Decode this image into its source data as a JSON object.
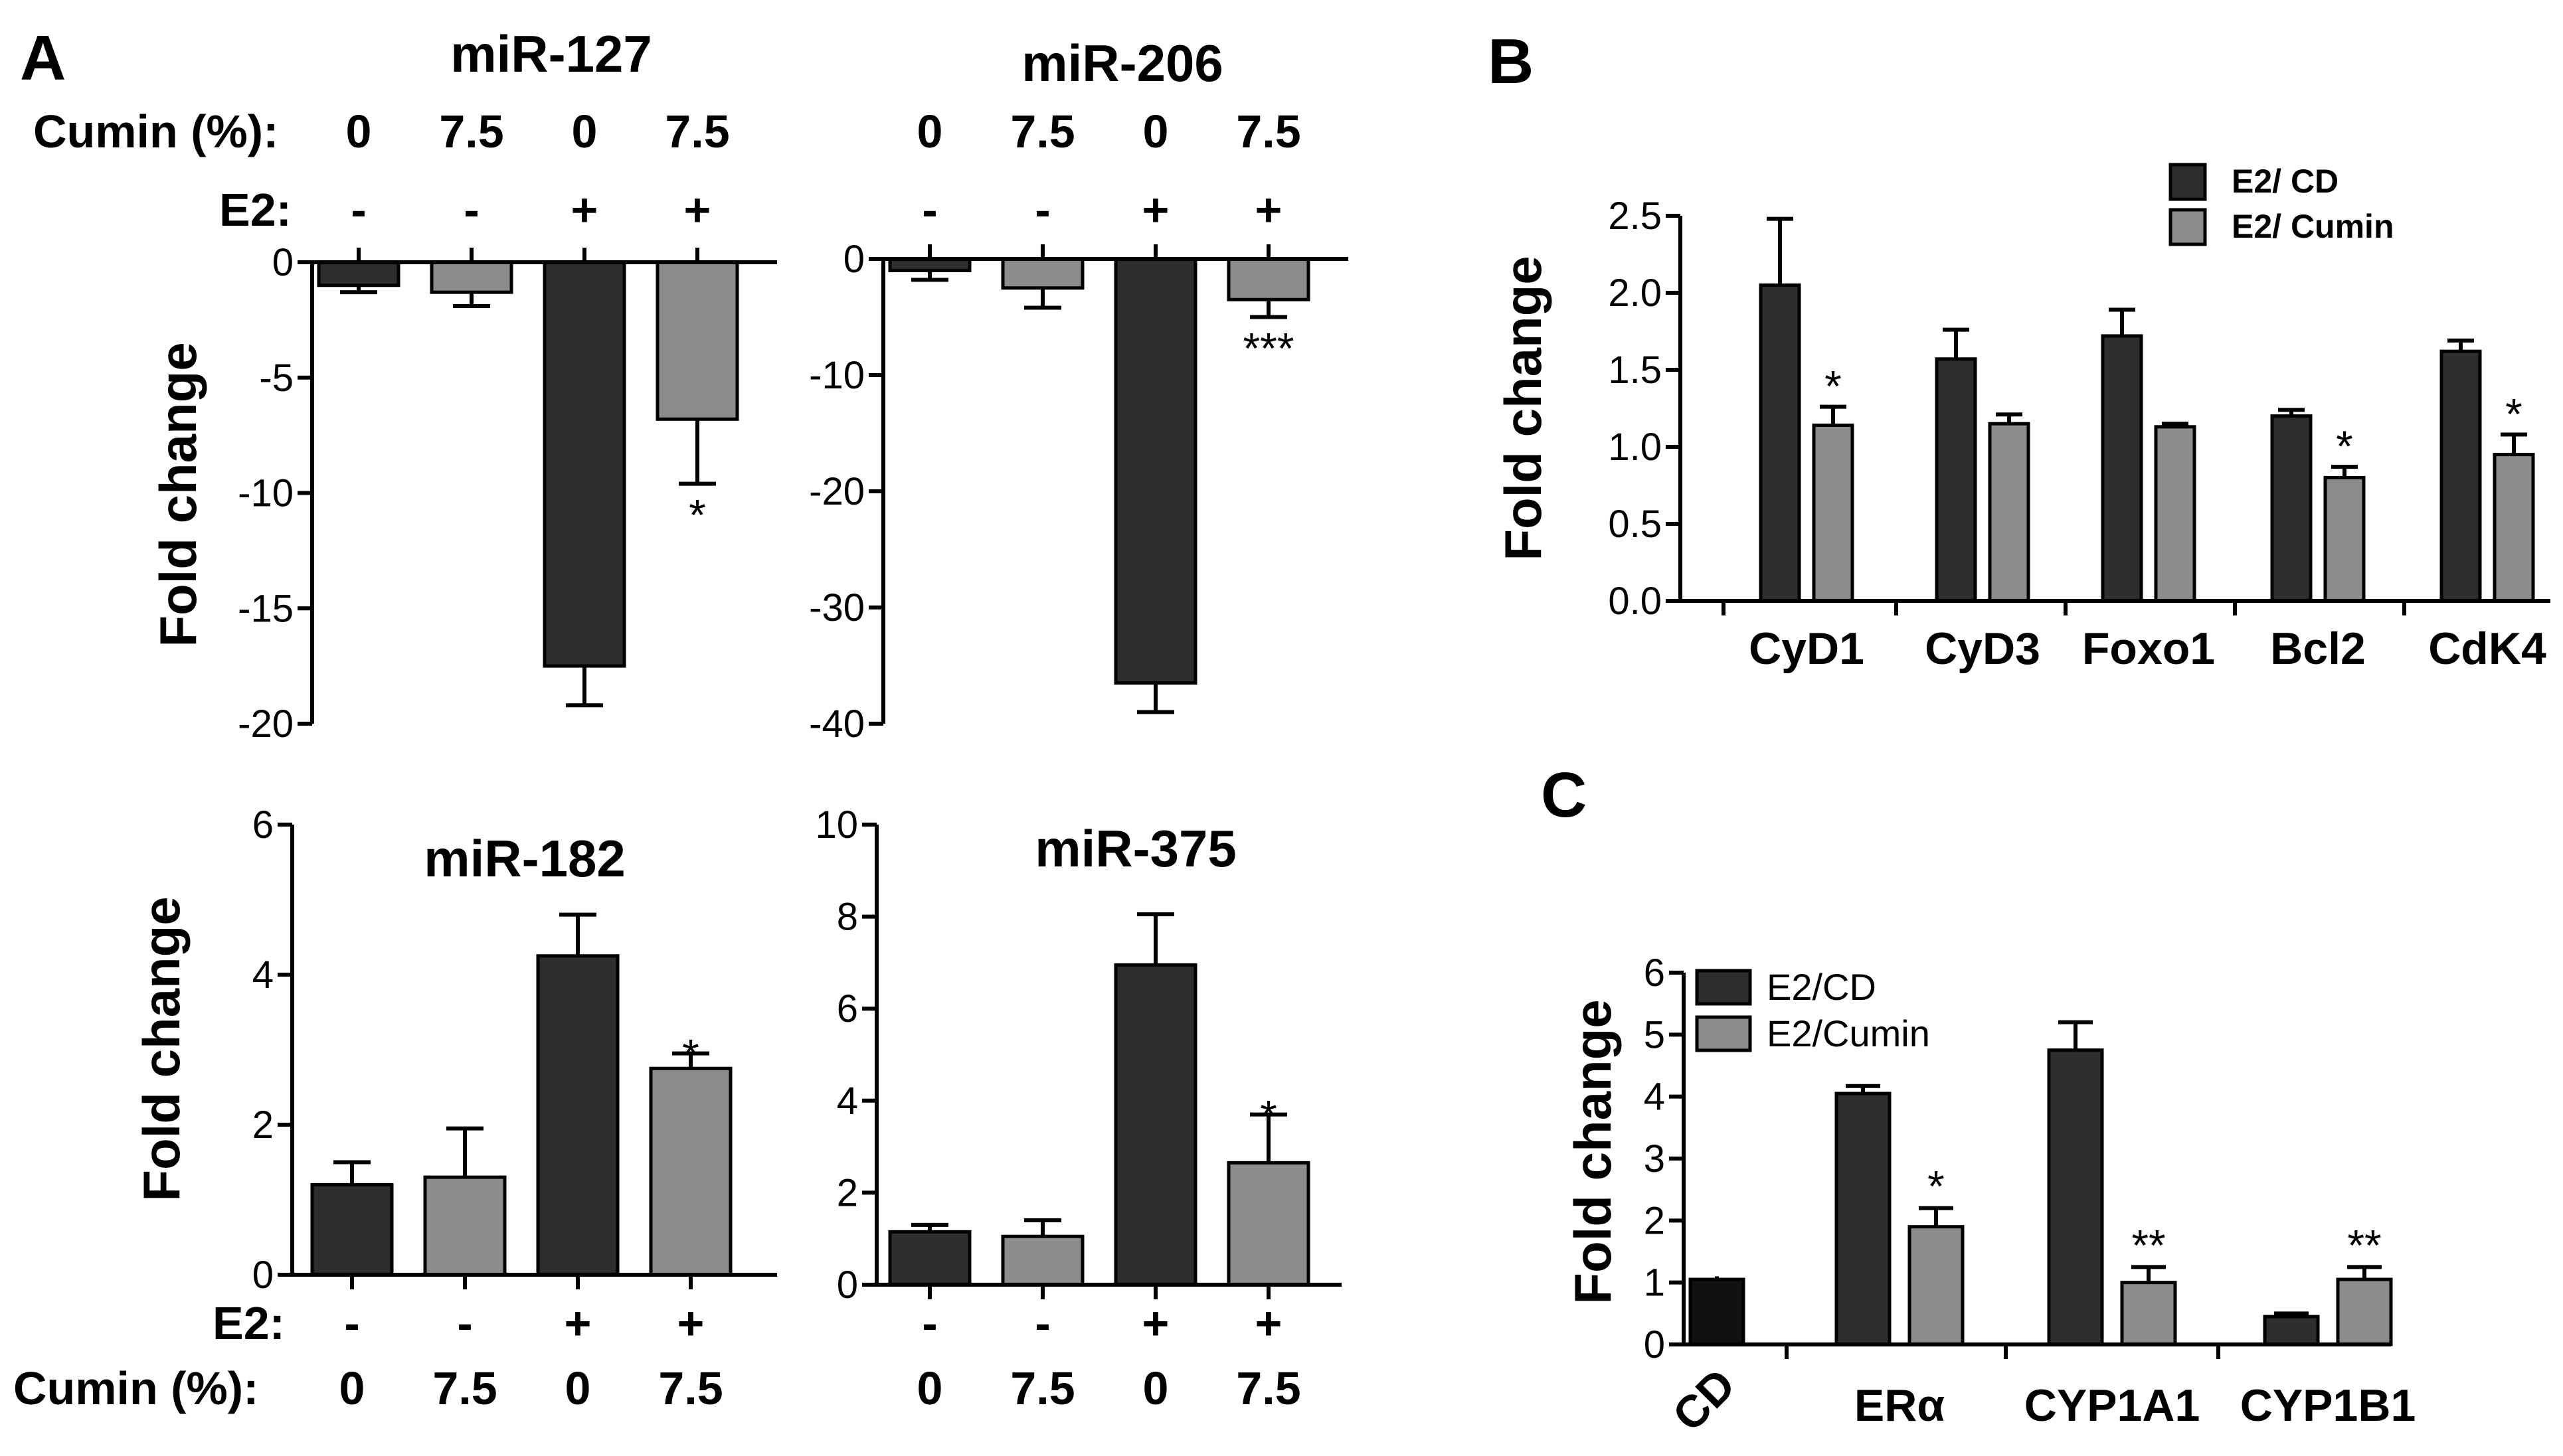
{
  "colors": {
    "dark": "#2e2e2e",
    "light": "#8c8c8c",
    "black": "#111111"
  },
  "panel_labels": {
    "a": "A",
    "b": "B",
    "c": "C"
  },
  "treatment": {
    "cumin_label": "Cumin (%):",
    "e2_label": "E2:",
    "cumin_values": [
      "0",
      "7.5",
      "0",
      "7.5"
    ],
    "e2_values": [
      "-",
      "-",
      "+",
      "+"
    ]
  },
  "chart_data": [
    {
      "id": "miR127",
      "type": "bar",
      "title": "miR-127",
      "ylabel": "Fold change",
      "categories": [
        "Cumin 0 / E2 -",
        "Cumin 7.5 / E2 -",
        "Cumin 0 / E2 +",
        "Cumin 7.5 / E2 +"
      ],
      "values": [
        -1.0,
        -1.3,
        -17.5,
        -6.8
      ],
      "errors": [
        0.3,
        0.6,
        1.7,
        2.8
      ],
      "colors": [
        "dark",
        "light",
        "dark",
        "light"
      ],
      "significance": [
        "",
        "",
        "",
        "*"
      ],
      "ylim": [
        -20,
        0
      ],
      "yticks": [
        0,
        -5,
        -10,
        -15,
        -20
      ],
      "ytick_labels": [
        "0",
        "-5",
        "-10",
        "-15",
        "-20"
      ]
    },
    {
      "id": "miR206",
      "type": "bar",
      "title": "miR-206",
      "ylabel": "",
      "categories": [
        "Cumin 0 / E2 -",
        "Cumin 7.5 / E2 -",
        "Cumin 0 / E2 +",
        "Cumin 7.5 / E2 +"
      ],
      "values": [
        -1.0,
        -2.5,
        -36.5,
        -3.5
      ],
      "errors": [
        0.8,
        1.7,
        2.5,
        1.5
      ],
      "colors": [
        "dark",
        "light",
        "dark",
        "light"
      ],
      "significance": [
        "",
        "",
        "",
        "***"
      ],
      "ylim": [
        -40,
        0
      ],
      "yticks": [
        0,
        -10,
        -20,
        -30,
        -40
      ],
      "ytick_labels": [
        "0",
        "-10",
        "-20",
        "-30",
        "-40"
      ]
    },
    {
      "id": "miR182",
      "type": "bar",
      "title": "miR-182",
      "ylabel": "Fold change",
      "categories": [
        "Cumin 0 / E2 -",
        "Cumin 7.5 / E2 -",
        "Cumin 0 / E2 +",
        "Cumin 7.5 / E2 +"
      ],
      "values": [
        1.2,
        1.3,
        4.25,
        2.75
      ],
      "errors": [
        0.3,
        0.65,
        0.55,
        0.2
      ],
      "colors": [
        "dark",
        "light",
        "dark",
        "light"
      ],
      "significance": [
        "",
        "",
        "",
        "*"
      ],
      "ylim": [
        0,
        6
      ],
      "yticks": [
        0,
        2,
        4,
        6
      ],
      "ytick_labels": [
        "0",
        "2",
        "4",
        "6"
      ]
    },
    {
      "id": "miR375",
      "type": "bar",
      "title": "miR-375",
      "ylabel": "",
      "categories": [
        "Cumin 0 / E2 -",
        "Cumin 7.5 / E2 -",
        "Cumin 0 / E2 +",
        "Cumin 7.5 / E2 +"
      ],
      "values": [
        1.15,
        1.05,
        6.95,
        2.65
      ],
      "errors": [
        0.15,
        0.35,
        1.1,
        1.05
      ],
      "colors": [
        "dark",
        "light",
        "dark",
        "light"
      ],
      "significance": [
        "",
        "",
        "",
        "*"
      ],
      "ylim": [
        0,
        10
      ],
      "yticks": [
        0,
        2,
        4,
        6,
        8,
        10
      ],
      "ytick_labels": [
        "0",
        "2",
        "4",
        "6",
        "8",
        "10"
      ]
    },
    {
      "id": "panelB",
      "type": "bar",
      "title": "",
      "ylabel": "Fold change",
      "categories": [
        "CyD1",
        "CyD3",
        "Foxo1",
        "Bcl2",
        "CdK4"
      ],
      "series": [
        {
          "name": "E2/ CD",
          "color": "dark",
          "values": [
            2.05,
            1.57,
            1.72,
            1.2,
            1.62
          ],
          "errors": [
            0.43,
            0.19,
            0.17,
            0.04,
            0.07
          ],
          "significance": [
            "",
            "",
            "",
            "",
            ""
          ]
        },
        {
          "name": "E2/ Cumin",
          "color": "light",
          "values": [
            1.14,
            1.15,
            1.13,
            0.8,
            0.95
          ],
          "errors": [
            0.12,
            0.06,
            0.02,
            0.07,
            0.13
          ],
          "significance": [
            "*",
            "",
            "",
            "*",
            "*"
          ]
        }
      ],
      "ylim": [
        0,
        2.5
      ],
      "yticks": [
        0,
        0.5,
        1.0,
        1.5,
        2.0,
        2.5
      ],
      "ytick_labels": [
        "0.0",
        "0.5",
        "1.0",
        "1.5",
        "2.0",
        "2.5"
      ],
      "legend": "top-center"
    },
    {
      "id": "panelC",
      "type": "bar",
      "title": "",
      "ylabel": "Fold change",
      "categories": [
        "CD",
        "ERα",
        "CYP1A1",
        "CYP1B1"
      ],
      "single_category": "CD",
      "single_value": 1.05,
      "single_error": 0.05,
      "series": [
        {
          "name": "E2/CD",
          "color": "dark",
          "values": [
            null,
            4.05,
            4.75,
            0.45
          ],
          "errors": [
            null,
            0.12,
            0.45,
            0.05
          ],
          "significance": [
            "",
            "",
            "",
            ""
          ]
        },
        {
          "name": "E2/Cumin",
          "color": "light",
          "values": [
            null,
            1.9,
            1.0,
            1.05
          ],
          "errors": [
            null,
            0.3,
            0.25,
            0.2
          ],
          "significance": [
            "",
            "*",
            "**",
            "**"
          ]
        }
      ],
      "ylim": [
        0,
        6
      ],
      "yticks": [
        0,
        1,
        2,
        3,
        4,
        5,
        6
      ],
      "ytick_labels": [
        "0",
        "1",
        "2",
        "3",
        "4",
        "5",
        "6"
      ],
      "legend": "top-left"
    }
  ]
}
